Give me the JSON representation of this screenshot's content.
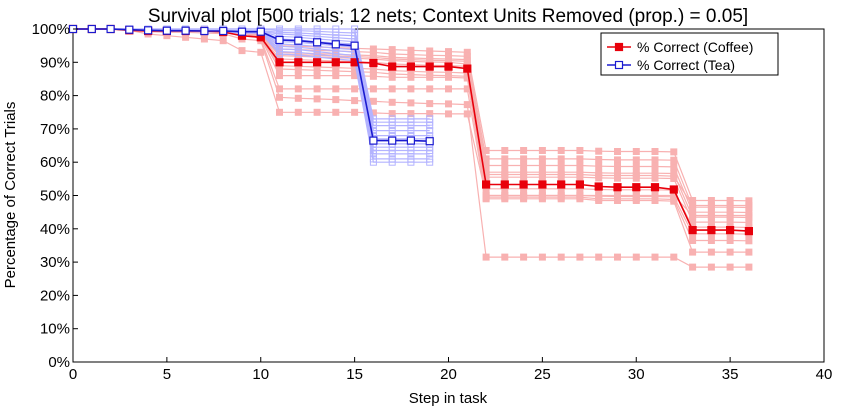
{
  "chart_data": {
    "type": "line",
    "title": "Survival plot [500 trials; 12 nets; Context Units Removed (prop.) = 0.05]",
    "xlabel": "Step in task",
    "ylabel": "Percentage of Correct Trials",
    "xlim": [
      0,
      40
    ],
    "ylim": [
      0,
      100
    ],
    "x_ticks": [
      0,
      5,
      10,
      15,
      20,
      25,
      30,
      35,
      40
    ],
    "y_ticks": [
      0,
      10,
      20,
      30,
      40,
      50,
      60,
      70,
      80,
      90,
      100
    ],
    "x_tick_labels": [
      "0",
      "5",
      "10",
      "15",
      "20",
      "25",
      "30",
      "35",
      "40"
    ],
    "y_tick_labels": [
      "0%",
      "10%",
      "20%",
      "30%",
      "40%",
      "50%",
      "60%",
      "70%",
      "80%",
      "90%",
      "100%"
    ],
    "grid": false,
    "legend_position": "top-right",
    "series": [
      {
        "name": "% Correct (Coffee)",
        "color": "#e8000b",
        "marker": "filled-square",
        "x": [
          0,
          1,
          2,
          3,
          4,
          5,
          6,
          7,
          8,
          9,
          10,
          11,
          12,
          13,
          14,
          15,
          16,
          17,
          18,
          19,
          20,
          21,
          22,
          23,
          24,
          25,
          26,
          27,
          28,
          29,
          30,
          31,
          32,
          33,
          34,
          35,
          36
        ],
        "values": [
          100,
          100,
          100,
          99.6,
          99.4,
          99.4,
          99.4,
          99.4,
          99.1,
          98,
          97.5,
          90,
          90,
          90,
          90,
          90,
          89.8,
          88.7,
          88.7,
          88.7,
          88.7,
          88.1,
          53.3,
          53.3,
          53.3,
          53.3,
          53.3,
          53.3,
          52.7,
          52.5,
          52.5,
          52.5,
          51.8,
          39.6,
          39.6,
          39.6,
          39.3
        ]
      },
      {
        "name": "% Correct (Tea)",
        "color": "#1a1ad0",
        "marker": "open-square",
        "x": [
          0,
          1,
          2,
          3,
          4,
          5,
          6,
          7,
          8,
          9,
          10,
          11,
          12,
          13,
          14,
          15,
          16,
          17,
          18,
          19
        ],
        "values": [
          100,
          100,
          100,
          99.8,
          99.6,
          99.5,
          99.5,
          99.4,
          99.4,
          99.2,
          99.2,
          96.7,
          96.5,
          96,
          95.4,
          95,
          66.5,
          66.5,
          66.5,
          66.3
        ]
      }
    ],
    "background_series": [
      {
        "group": "coffee-nets",
        "color": "#f8b1b1",
        "x": [
          0,
          1,
          2,
          3,
          4,
          5,
          6,
          7,
          8,
          9,
          10,
          11,
          12,
          13,
          14,
          15,
          16,
          17,
          18,
          19,
          20,
          21,
          22,
          23,
          24,
          25,
          26,
          27,
          28,
          29,
          30,
          31,
          32,
          33,
          34,
          35,
          36
        ],
        "lines": [
          [
            100,
            100,
            100,
            99.7,
            99.5,
            99.5,
            99.5,
            99.5,
            99.2,
            99,
            98.8,
            95,
            94.8,
            94.6,
            94.4,
            94.2,
            94,
            93.8,
            93.6,
            93.4,
            93.2,
            93,
            63.5,
            63.5,
            63.5,
            63.5,
            63.5,
            63.5,
            63.3,
            63.2,
            63.2,
            63.2,
            63.1,
            48.5,
            48.5,
            48.5,
            48.4
          ],
          [
            100,
            100,
            100,
            99.7,
            99.5,
            99.5,
            99.5,
            99.5,
            99.2,
            99,
            98.6,
            94,
            93.8,
            93.6,
            93.4,
            93.2,
            93,
            92.5,
            92.3,
            92.1,
            92,
            91.8,
            61,
            61,
            61,
            61,
            61,
            61,
            60.8,
            60.7,
            60.7,
            60.7,
            60.6,
            46.5,
            46.5,
            46.5,
            46.4
          ],
          [
            100,
            100,
            100,
            99.7,
            99.5,
            99.5,
            99.5,
            99.5,
            99.2,
            99,
            98.4,
            93,
            92.8,
            92.6,
            92.4,
            92.2,
            92,
            91.5,
            91.3,
            91.1,
            91,
            90.8,
            59,
            59,
            59,
            59,
            59,
            59,
            58.8,
            58.7,
            58.7,
            58.7,
            58.6,
            45,
            45,
            45,
            44.9
          ],
          [
            100,
            100,
            100,
            99.7,
            99.5,
            99.5,
            99.5,
            99.5,
            99.2,
            99,
            98.2,
            92,
            91.8,
            91.6,
            91.4,
            91.2,
            91,
            90.5,
            90.3,
            90.1,
            90,
            89.5,
            57,
            57,
            57,
            57,
            57,
            57,
            56.8,
            56.7,
            56.7,
            56.7,
            56.6,
            43.5,
            43.5,
            43.5,
            43.4
          ],
          [
            100,
            100,
            100,
            99.7,
            99.5,
            99.5,
            99.5,
            99.5,
            99.2,
            99,
            98,
            91,
            90.8,
            90.6,
            90.4,
            90.2,
            90,
            89.5,
            89.3,
            89.1,
            89,
            88.8,
            55.5,
            55.5,
            55.5,
            55.5,
            55.5,
            55.5,
            55.3,
            55.2,
            55.2,
            55.2,
            55.1,
            42,
            42,
            42,
            41.9
          ],
          [
            100,
            100,
            100,
            99.7,
            99.5,
            99.5,
            99.5,
            99.5,
            99.2,
            99,
            97.8,
            89,
            88.8,
            88.6,
            88.4,
            88.2,
            88,
            87.5,
            87.3,
            87.1,
            87,
            86.8,
            52,
            52,
            52,
            52,
            52,
            52,
            51.8,
            51.7,
            51.7,
            51.7,
            51.6,
            40.5,
            40.5,
            40.5,
            40.4
          ],
          [
            100,
            100,
            100,
            99.7,
            99.5,
            99.5,
            99.5,
            99.5,
            99.2,
            99,
            97.6,
            88,
            87.8,
            87.6,
            87.4,
            87.2,
            87,
            86.5,
            86.3,
            86.1,
            86,
            85.8,
            50,
            50,
            50,
            50,
            50,
            50,
            49.8,
            49.7,
            49.7,
            49.7,
            49.6,
            38.5,
            38.5,
            38.5,
            38.4
          ],
          [
            100,
            100,
            100,
            99.7,
            99.5,
            99.5,
            99.5,
            99.5,
            99.2,
            99,
            97.4,
            86,
            86,
            86,
            86,
            86,
            85.8,
            85.5,
            85.5,
            85.5,
            85.5,
            85.3,
            49.5,
            49.5,
            49.5,
            49.5,
            49.5,
            49.5,
            49,
            49,
            49,
            49,
            48.8,
            36.5,
            36.5,
            36.5,
            36.4
          ],
          [
            100,
            100,
            100,
            99.7,
            99.5,
            99.5,
            99.5,
            99.5,
            99.2,
            99,
            97,
            82,
            82,
            82,
            82,
            82,
            82,
            82,
            82,
            82,
            82,
            82,
            49,
            49,
            49,
            49,
            49,
            49,
            48.5,
            48.5,
            48.5,
            48.5,
            48.3,
            33,
            33,
            33,
            33
          ],
          [
            100,
            100,
            100,
            99.6,
            99.2,
            99,
            99,
            98.8,
            98.6,
            97,
            96.5,
            79.5,
            79.2,
            79,
            78.8,
            78.5,
            78.3,
            78,
            77.8,
            77.6,
            77.5,
            77.3,
            31.5,
            31.5,
            31.5,
            31.5,
            31.5,
            31.5,
            31.5,
            31.5,
            31.5,
            31.5,
            31.5,
            28.5,
            28.5,
            28.5,
            28.5
          ],
          [
            100,
            100,
            100,
            99.6,
            98.5,
            98,
            97.5,
            97,
            96.5,
            93.5,
            93,
            75,
            75,
            75,
            75,
            75,
            74.8,
            74.6,
            74.6,
            74.6,
            74.5,
            74.5,
            50,
            50,
            50,
            50,
            50,
            50,
            50,
            50,
            50,
            50,
            50,
            44,
            44,
            44,
            44
          ],
          [
            100,
            100,
            100,
            99.7,
            99.5,
            99.5,
            99.5,
            99.5,
            99.2,
            99,
            98.5,
            92.5,
            92.3,
            92.1,
            91.9,
            91.7,
            91.5,
            91,
            90.8,
            90.6,
            90.5,
            90.3,
            56.3,
            56.3,
            56.3,
            56.3,
            56.3,
            56.3,
            56,
            56,
            56,
            56,
            55.8,
            47,
            47,
            47,
            47
          ]
        ]
      },
      {
        "group": "tea-nets",
        "color": "#b3b3ff",
        "x": [
          0,
          1,
          2,
          3,
          4,
          5,
          6,
          7,
          8,
          9,
          10,
          11,
          12,
          13,
          14,
          15,
          16,
          17,
          18,
          19
        ],
        "lines": [
          [
            100,
            100,
            100,
            100,
            100,
            100,
            100,
            100,
            100,
            100,
            100,
            100,
            100,
            100,
            100,
            100,
            73,
            73,
            73,
            73
          ],
          [
            100,
            100,
            100,
            100,
            100,
            100,
            100,
            100,
            100,
            100,
            100,
            99.5,
            99.5,
            99.3,
            99,
            98.8,
            72,
            72,
            72,
            72
          ],
          [
            100,
            100,
            100,
            100,
            99.8,
            99.8,
            99.8,
            99.6,
            99.6,
            99.5,
            99.5,
            99,
            98.8,
            98.5,
            98.2,
            98,
            71,
            71,
            71,
            71
          ],
          [
            100,
            100,
            100,
            99.8,
            99.6,
            99.6,
            99.6,
            99.5,
            99.5,
            99.3,
            99.3,
            98.5,
            98.2,
            97.8,
            97.4,
            97,
            69.5,
            69.5,
            69.5,
            69.5
          ],
          [
            100,
            100,
            100,
            99.8,
            99.6,
            99.5,
            99.5,
            99.4,
            99.4,
            99.2,
            99.2,
            97.8,
            97.5,
            97,
            96.6,
            96.2,
            68,
            68,
            68,
            68
          ],
          [
            100,
            100,
            100,
            99.8,
            99.6,
            99.5,
            99.5,
            99.4,
            99.4,
            99.2,
            99.2,
            97,
            96.7,
            96.2,
            95.8,
            95.5,
            67,
            67,
            67,
            67
          ],
          [
            100,
            100,
            100,
            99.8,
            99.6,
            99.5,
            99.5,
            99.4,
            99.4,
            99.2,
            99.2,
            96.2,
            96,
            95.5,
            95,
            94.6,
            65.5,
            65.5,
            65.5,
            65.5
          ],
          [
            100,
            100,
            100,
            99.8,
            99.6,
            99.5,
            99.5,
            99.4,
            99.4,
            99.2,
            99.2,
            95.5,
            95.2,
            94.8,
            94.2,
            93.8,
            64.5,
            64.5,
            64.5,
            64.5
          ],
          [
            100,
            100,
            100,
            99.8,
            99.5,
            99.4,
            99.4,
            99.3,
            99.3,
            99,
            99,
            94.8,
            94.5,
            94,
            93.5,
            93,
            63.5,
            63.5,
            63.5,
            63.5
          ],
          [
            100,
            100,
            100,
            99.8,
            99.5,
            99.4,
            99.4,
            99.3,
            99.3,
            99,
            99,
            94,
            93.8,
            93.2,
            92.6,
            92,
            62.5,
            62.5,
            62.5,
            62.5
          ],
          [
            100,
            100,
            100,
            99.8,
            99.5,
            99.3,
            99.3,
            99.2,
            99.2,
            98.8,
            98.8,
            93.2,
            93,
            92.4,
            91.8,
            91.2,
            61,
            61,
            61,
            61
          ],
          [
            100,
            100,
            100,
            99.8,
            99.5,
            99.3,
            99.3,
            99.2,
            99.2,
            98.8,
            98.8,
            92.5,
            92.2,
            91.6,
            91,
            90.5,
            60,
            60,
            60,
            60
          ]
        ]
      }
    ]
  }
}
